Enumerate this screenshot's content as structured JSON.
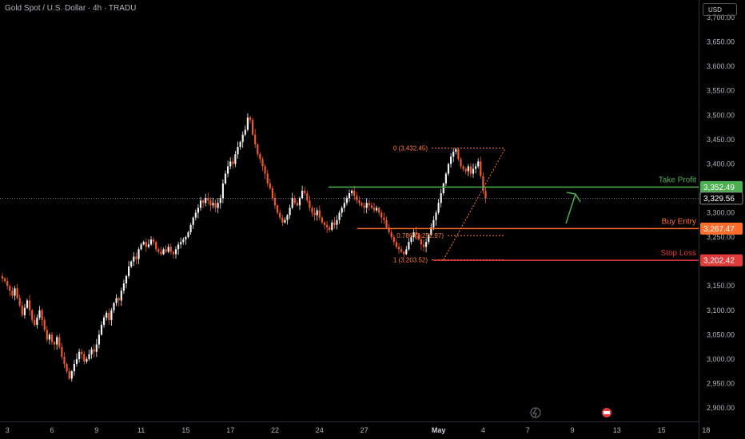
{
  "header": {
    "title": "Gold Spot / U.S. Dollar · 4h · TRADU"
  },
  "currency_button": {
    "label": "USD"
  },
  "colors": {
    "background": "#000000",
    "up_candle": "#f0f0f0",
    "down_candle": "#ef5a2c",
    "take_profit": "#4caf50",
    "buy_entry": "#ff6d2d",
    "stop_loss": "#e23b3b",
    "fib": "#ff7a3a",
    "axis_text": "#b2b5be"
  },
  "chart_data": {
    "type": "candlestick",
    "ylim": [
      2880,
      3720
    ],
    "y_ticks": [
      "2,900.00",
      "2,950.00",
      "3,000.00",
      "3,050.00",
      "3,100.00",
      "3,150.00",
      "3,200.00",
      "3,250.00",
      "3,300.00",
      "3,350.00",
      "3,400.00",
      "3,450.00",
      "3,500.00",
      "3,550.00",
      "3,600.00",
      "3,650.00",
      "3,700.00"
    ],
    "y_tick_values": [
      2900,
      2950,
      3000,
      3050,
      3100,
      3150,
      3200,
      3250,
      3300,
      3350,
      3400,
      3450,
      3500,
      3550,
      3600,
      3650,
      3700
    ],
    "x_ticks": [
      {
        "label": "3",
        "bar": 2
      },
      {
        "label": "6",
        "bar": 20
      },
      {
        "label": "9",
        "bar": 38
      },
      {
        "label": "11",
        "bar": 56
      },
      {
        "label": "15",
        "bar": 74
      },
      {
        "label": "17",
        "bar": 92
      },
      {
        "label": "22",
        "bar": 110
      },
      {
        "label": "24",
        "bar": 128
      },
      {
        "label": "27",
        "bar": 146
      },
      {
        "label": "May",
        "bar": 176
      },
      {
        "label": "4",
        "bar": 194
      },
      {
        "label": "7",
        "bar": 212
      },
      {
        "label": "9",
        "bar": 230
      },
      {
        "label": "13",
        "bar": 248
      },
      {
        "label": "15",
        "bar": 266
      },
      {
        "label": "18",
        "bar": 284
      }
    ],
    "bar_count": 310,
    "closes": [
      3165,
      3160,
      3150,
      3140,
      3130,
      3145,
      3125,
      3110,
      3090,
      3105,
      3120,
      3100,
      3080,
      3070,
      3085,
      3100,
      3080,
      3060,
      3040,
      3050,
      3035,
      3030,
      3045,
      3025,
      3005,
      2990,
      2975,
      2960,
      2975,
      2990,
      3000,
      3015,
      3010,
      2995,
      3000,
      3010,
      3020,
      3015,
      3030,
      3050,
      3070,
      3085,
      3095,
      3080,
      3100,
      3115,
      3125,
      3120,
      3140,
      3155,
      3170,
      3190,
      3200,
      3210,
      3205,
      3225,
      3235,
      3240,
      3230,
      3235,
      3245,
      3240,
      3225,
      3220,
      3215,
      3225,
      3220,
      3230,
      3220,
      3215,
      3225,
      3235,
      3240,
      3245,
      3250,
      3260,
      3275,
      3290,
      3300,
      3310,
      3325,
      3320,
      3330,
      3325,
      3315,
      3320,
      3310,
      3320,
      3330,
      3360,
      3380,
      3395,
      3405,
      3400,
      3420,
      3435,
      3445,
      3460,
      3470,
      3495,
      3490,
      3460,
      3440,
      3420,
      3410,
      3395,
      3380,
      3360,
      3350,
      3330,
      3315,
      3300,
      3290,
      3280,
      3285,
      3295,
      3310,
      3330,
      3320,
      3315,
      3330,
      3345,
      3340,
      3325,
      3310,
      3300,
      3295,
      3305,
      3290,
      3280,
      3275,
      3270,
      3265,
      3280,
      3275,
      3285,
      3300,
      3310,
      3320,
      3330,
      3340,
      3345,
      3335,
      3325,
      3320,
      3315,
      3310,
      3320,
      3315,
      3310,
      3305,
      3310,
      3300,
      3290,
      3285,
      3270,
      3260,
      3250,
      3240,
      3230,
      3225,
      3220,
      3215,
      3225,
      3240,
      3250,
      3260,
      3255,
      3245,
      3235,
      3230,
      3240,
      3255,
      3270,
      3285,
      3300,
      3320,
      3340,
      3360,
      3380,
      3400,
      3415,
      3425,
      3430,
      3410,
      3395,
      3390,
      3385,
      3395,
      3380,
      3390,
      3395,
      3405,
      3375,
      3345,
      3330
    ],
    "levels": [
      {
        "name": "Take Profit",
        "value": 3352.49,
        "label": "3,352.49",
        "color": "#4caf50"
      },
      {
        "name": "Buy Entry",
        "value": 3267.47,
        "label": "3,267.47",
        "color": "#ff6d2d"
      },
      {
        "name": "Stop Loss",
        "value": 3202.42,
        "label": "3,202.42",
        "color": "#e23b3b"
      }
    ],
    "current_price": {
      "value": 3329.56,
      "label": "3,329.56"
    },
    "fib_levels": [
      {
        "label": "0 (3,432.45)",
        "value": 3432.45
      },
      {
        "label": "0.786 (3,252.97)",
        "value": 3252.97
      },
      {
        "label": "1 (3,203.52)",
        "value": 3203.52
      }
    ],
    "arrow_direction": "up"
  }
}
